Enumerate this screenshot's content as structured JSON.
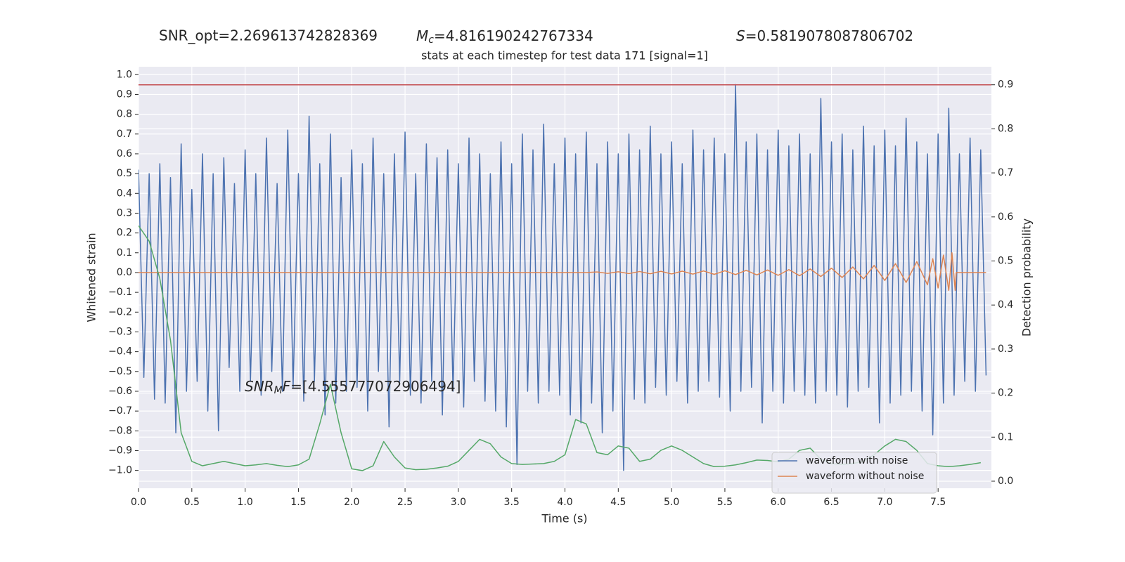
{
  "chart_data": {
    "type": "line",
    "header": {
      "snr_opt": "SNR_opt=2.269613742828369",
      "mc": {
        "symbol": "M",
        "sub": "c",
        "value": "=4.816190242767334"
      },
      "s": {
        "symbol": "S",
        "value": "=0.5819078087806702"
      }
    },
    "title": "stats at each timestep for test data 171 [signal=1]",
    "annotation": {
      "symbol": "SNR",
      "sub": "M",
      "rest": "F",
      "value": "=[4.555777072906494]"
    },
    "x_label": "Time (s)",
    "y_label": "Whitened strain",
    "y2_label": "Detection probability",
    "xlim": [
      0,
      8
    ],
    "ylim": [
      -1.09,
      1.04
    ],
    "y2lim": [
      -0.016,
      0.941
    ],
    "xticks": [
      {
        "value": 0,
        "label": "0.0"
      },
      0.5,
      {
        "value": 1,
        "label": "1.0"
      },
      1.5,
      {
        "value": 2,
        "label": "2.0"
      },
      2.5,
      {
        "value": 3,
        "label": "3.0"
      },
      3.5,
      {
        "value": 4,
        "label": "4.0"
      },
      4.5,
      {
        "value": 5,
        "label": "5.0"
      },
      5.5,
      {
        "value": 6,
        "label": "6.0"
      },
      6.5,
      {
        "value": 7,
        "label": "7.0"
      },
      7.5
    ],
    "yticks": [
      {
        "value": -1,
        "label": "−1.0"
      },
      {
        "value": -0.9,
        "label": "−0.9"
      },
      {
        "value": -0.8,
        "label": "−0.8"
      },
      {
        "value": -0.7,
        "label": "−0.7"
      },
      {
        "value": -0.6,
        "label": "−0.6"
      },
      {
        "value": -0.5,
        "label": "−0.5"
      },
      {
        "value": -0.4,
        "label": "−0.4"
      },
      {
        "value": -0.3,
        "label": "−0.3"
      },
      {
        "value": -0.2,
        "label": "−0.2"
      },
      {
        "value": -0.1,
        "label": "−0.1"
      },
      {
        "value": 0,
        "label": "0.0"
      },
      0.1,
      0.2,
      0.3,
      0.4,
      0.5,
      0.6,
      0.7,
      0.8,
      0.9,
      {
        "value": 1,
        "label": "1.0"
      }
    ],
    "y2ticks": [
      {
        "value": 0,
        "label": "0.0"
      },
      0.1,
      0.2,
      0.3,
      0.4,
      0.5,
      0.6,
      0.7,
      0.8,
      0.9
    ],
    "grid": true,
    "legend": "lower right",
    "series": [
      {
        "name": "waveform with noise",
        "color": "#4c72b0",
        "x": [
          0,
          0.05,
          0.1,
          0.15,
          0.2,
          0.25,
          0.3,
          0.35,
          0.4,
          0.45,
          0.5,
          0.55,
          0.6,
          0.65,
          0.7,
          0.75,
          0.8,
          0.85,
          0.9,
          0.95,
          1,
          1.05,
          1.1,
          1.15,
          1.2,
          1.25,
          1.3,
          1.35,
          1.4,
          1.45,
          1.5,
          1.55,
          1.6,
          1.65,
          1.7,
          1.75,
          1.8,
          1.85,
          1.9,
          1.95,
          2,
          2.05,
          2.1,
          2.15,
          2.2,
          2.25,
          2.3,
          2.35,
          2.4,
          2.45,
          2.5,
          2.55,
          2.6,
          2.65,
          2.7,
          2.75,
          2.8,
          2.85,
          2.9,
          2.95,
          3,
          3.05,
          3.1,
          3.15,
          3.2,
          3.25,
          3.3,
          3.35,
          3.4,
          3.45,
          3.5,
          3.55,
          3.6,
          3.65,
          3.7,
          3.75,
          3.8,
          3.85,
          3.9,
          3.95,
          4,
          4.05,
          4.1,
          4.15,
          4.2,
          4.25,
          4.3,
          4.35,
          4.4,
          4.45,
          4.5,
          4.55,
          4.6,
          4.65,
          4.7,
          4.75,
          4.8,
          4.85,
          4.9,
          4.95,
          5,
          5.05,
          5.1,
          5.15,
          5.2,
          5.25,
          5.3,
          5.35,
          5.4,
          5.45,
          5.5,
          5.55,
          5.6,
          5.65,
          5.7,
          5.75,
          5.8,
          5.85,
          5.9,
          5.95,
          6,
          6.05,
          6.1,
          6.15,
          6.2,
          6.25,
          6.3,
          6.35,
          6.4,
          6.45,
          6.5,
          6.55,
          6.6,
          6.65,
          6.7,
          6.75,
          6.8,
          6.85,
          6.9,
          6.95,
          7,
          7.05,
          7.1,
          7.15,
          7.2,
          7.25,
          7.3,
          7.35,
          7.4,
          7.45,
          7.5,
          7.55,
          7.6,
          7.65,
          7.7,
          7.75,
          7.8,
          7.85,
          7.9,
          7.95
        ],
        "values": [
          0.52,
          -0.53,
          0.5,
          -0.64,
          0.55,
          -0.66,
          0.48,
          -0.81,
          0.65,
          -0.6,
          0.42,
          -0.55,
          0.6,
          -0.7,
          0.5,
          -0.8,
          0.58,
          -0.48,
          0.45,
          -0.6,
          0.62,
          -0.55,
          0.5,
          -0.62,
          0.68,
          -0.5,
          0.45,
          -0.6,
          0.72,
          -0.58,
          0.5,
          -0.65,
          0.79,
          -0.55,
          0.55,
          -0.72,
          0.7,
          -0.66,
          0.48,
          -0.6,
          0.62,
          -0.58,
          0.55,
          -0.7,
          0.68,
          -0.5,
          0.5,
          -0.78,
          0.6,
          -0.55,
          0.71,
          -0.62,
          0.5,
          -0.66,
          0.65,
          -0.55,
          0.58,
          -0.72,
          0.62,
          -0.6,
          0.55,
          -0.68,
          0.68,
          -0.55,
          0.6,
          -0.65,
          0.5,
          -0.7,
          0.66,
          -0.78,
          0.55,
          -0.97,
          0.7,
          -0.6,
          0.62,
          -0.66,
          0.75,
          -0.6,
          0.55,
          -0.62,
          0.68,
          -0.72,
          0.6,
          -0.76,
          0.71,
          -0.66,
          0.55,
          -0.81,
          0.66,
          -0.7,
          0.6,
          -1.0,
          0.7,
          -0.64,
          0.62,
          -0.66,
          0.74,
          -0.58,
          0.6,
          -0.62,
          0.66,
          -0.55,
          0.55,
          -0.66,
          0.72,
          -0.6,
          0.62,
          -0.55,
          0.68,
          -0.63,
          0.6,
          -0.7,
          0.95,
          -0.6,
          0.66,
          -0.58,
          0.7,
          -0.76,
          0.62,
          -0.6,
          0.72,
          -0.66,
          0.64,
          -0.6,
          0.7,
          -0.62,
          0.6,
          -0.66,
          0.88,
          -0.6,
          0.66,
          -0.62,
          0.7,
          -0.68,
          0.62,
          -0.6,
          0.74,
          -0.58,
          0.64,
          -0.76,
          0.72,
          -0.66,
          0.64,
          -0.62,
          0.78,
          -0.6,
          0.66,
          -0.7,
          0.6,
          -0.82,
          0.7,
          -0.66,
          0.83,
          -0.62,
          0.6,
          -0.55,
          0.68,
          -0.6,
          0.62,
          -0.52
        ]
      },
      {
        "name": "waveform without noise",
        "color": "#dd8452",
        "x": [
          0,
          4.2,
          4.3,
          4.4,
          4.5,
          4.6,
          4.7,
          4.8,
          4.9,
          5,
          5.1,
          5.2,
          5.3,
          5.4,
          5.5,
          5.6,
          5.7,
          5.8,
          5.9,
          6,
          6.1,
          6.2,
          6.3,
          6.4,
          6.5,
          6.6,
          6.7,
          6.8,
          6.9,
          7,
          7.1,
          7.2,
          7.3,
          7.4,
          7.45,
          7.5,
          7.55,
          7.6,
          7.63,
          7.66,
          7.67,
          7.95
        ],
        "values": [
          0,
          0,
          0.003,
          -0.004,
          0.004,
          -0.005,
          0.005,
          -0.006,
          0.006,
          -0.007,
          0.007,
          -0.008,
          0.008,
          -0.009,
          0.009,
          -0.01,
          0.011,
          -0.012,
          0.013,
          -0.014,
          0.015,
          -0.016,
          0.018,
          -0.02,
          0.022,
          -0.025,
          0.028,
          -0.032,
          0.036,
          -0.04,
          0.045,
          -0.05,
          0.055,
          -0.062,
          0.07,
          -0.078,
          0.088,
          -0.09,
          0.1,
          -0.09,
          0,
          0
        ]
      }
    ],
    "probability": {
      "color": "#55a868",
      "axis": "y2",
      "x": [
        0,
        0.1,
        0.2,
        0.3,
        0.4,
        0.5,
        0.6,
        0.7,
        0.8,
        0.9,
        1,
        1.1,
        1.2,
        1.3,
        1.4,
        1.5,
        1.6,
        1.7,
        1.8,
        1.9,
        2,
        2.1,
        2.2,
        2.3,
        2.4,
        2.5,
        2.6,
        2.7,
        2.8,
        2.9,
        3,
        3.1,
        3.2,
        3.3,
        3.4,
        3.5,
        3.6,
        3.7,
        3.8,
        3.9,
        4,
        4.1,
        4.2,
        4.3,
        4.4,
        4.5,
        4.6,
        4.7,
        4.8,
        4.9,
        5,
        5.1,
        5.2,
        5.3,
        5.4,
        5.5,
        5.6,
        5.7,
        5.8,
        5.9,
        6,
        6.1,
        6.2,
        6.3,
        6.4,
        6.5,
        6.6,
        6.7,
        6.8,
        6.9,
        7,
        7.1,
        7.2,
        7.3,
        7.4,
        7.5,
        7.6,
        7.7,
        7.8,
        7.9
      ],
      "values": [
        0.58,
        0.545,
        0.46,
        0.32,
        0.11,
        0.045,
        0.035,
        0.04,
        0.045,
        0.04,
        0.035,
        0.037,
        0.04,
        0.036,
        0.033,
        0.037,
        0.05,
        0.13,
        0.22,
        0.11,
        0.028,
        0.024,
        0.035,
        0.09,
        0.055,
        0.03,
        0.026,
        0.027,
        0.03,
        0.034,
        0.045,
        0.07,
        0.095,
        0.085,
        0.055,
        0.04,
        0.038,
        0.039,
        0.04,
        0.045,
        0.06,
        0.14,
        0.13,
        0.065,
        0.06,
        0.08,
        0.075,
        0.045,
        0.05,
        0.07,
        0.08,
        0.07,
        0.055,
        0.04,
        0.033,
        0.034,
        0.037,
        0.042,
        0.048,
        0.047,
        0.044,
        0.05,
        0.07,
        0.075,
        0.05,
        0.04,
        0.038,
        0.04,
        0.045,
        0.06,
        0.08,
        0.095,
        0.09,
        0.07,
        0.04,
        0.035,
        0.033,
        0.035,
        0.038,
        0.042
      ]
    },
    "threshold": {
      "value": 0.9,
      "axis": "y2",
      "color": "#c44e52"
    }
  }
}
